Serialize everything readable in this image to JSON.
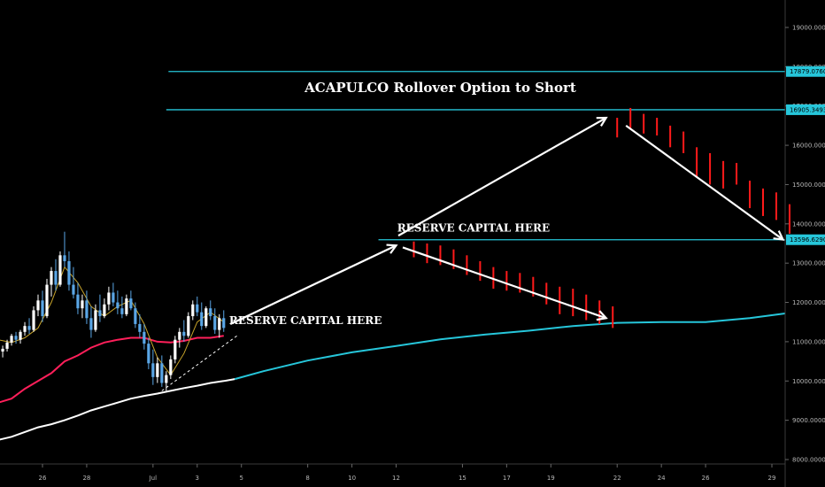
{
  "chart_data": {
    "type": "line",
    "title": "",
    "ylim": [
      7900,
      19800
    ],
    "y_ticks": [
      8000,
      9000,
      10000,
      11000,
      12000,
      13000,
      14000,
      15000,
      16000,
      17000,
      18000,
      19000
    ],
    "y_tick_labels": [
      "8000.0000",
      "9000.0000",
      "10000.0000",
      "11000.0000",
      "12000.0000",
      "13000.0000",
      "14000.0000",
      "15000.0000",
      "16000.0000",
      "17000.0000",
      "18000.0000",
      "19000.0000"
    ],
    "x_ticks": [
      {
        "label": "26",
        "day": 26
      },
      {
        "label": "28",
        "day": 28
      },
      {
        "label": "Jul",
        "day": 31
      },
      {
        "label": "3",
        "day": 33
      },
      {
        "label": "5",
        "day": 35
      },
      {
        "label": "8",
        "day": 38
      },
      {
        "label": "10",
        "day": 40
      },
      {
        "label": "12",
        "day": 42
      },
      {
        "label": "15",
        "day": 45
      },
      {
        "label": "17",
        "day": 47
      },
      {
        "label": "19",
        "day": 49
      },
      {
        "label": "22",
        "day": 52
      },
      {
        "label": "24",
        "day": 54
      },
      {
        "label": "26",
        "day": 56
      },
      {
        "label": "29",
        "day": 59
      }
    ],
    "xlim": [
      24.0,
      59.6
    ],
    "horizontal_levels": [
      {
        "name": "level-17879",
        "value": 17879.076,
        "label": "17879.0760",
        "color": "#26c6da",
        "x_start": 31.7
      },
      {
        "name": "level-16905",
        "value": 16905.3493,
        "label": "16905.3493",
        "color": "#26c6da",
        "x_start": 31.6
      },
      {
        "name": "level-13596",
        "value": 13596.629,
        "label": "13596.6290",
        "color": "#26c6da",
        "x_start": 41.2
      }
    ],
    "candles": [
      [
        24.0,
        10850,
        10950,
        10650,
        10750
      ],
      [
        24.2,
        10750,
        10900,
        10600,
        10820
      ],
      [
        24.4,
        10820,
        11050,
        10750,
        10980
      ],
      [
        24.6,
        10980,
        11200,
        10900,
        11150
      ],
      [
        24.8,
        11150,
        11250,
        10950,
        11050
      ],
      [
        25.0,
        11050,
        11300,
        10950,
        11250
      ],
      [
        25.2,
        11250,
        11500,
        11150,
        11400
      ],
      [
        25.4,
        11400,
        11600,
        11200,
        11300
      ],
      [
        25.6,
        11300,
        11900,
        11250,
        11800
      ],
      [
        25.8,
        11800,
        12200,
        11650,
        12050
      ],
      [
        26.0,
        12050,
        12300,
        11500,
        11650
      ],
      [
        26.2,
        11650,
        12600,
        11600,
        12450
      ],
      [
        26.4,
        12450,
        12900,
        12150,
        12800
      ],
      [
        26.6,
        12800,
        13100,
        12300,
        12450
      ],
      [
        26.8,
        12450,
        13300,
        12400,
        13200
      ],
      [
        27.0,
        13200,
        13800,
        12900,
        13050
      ],
      [
        27.2,
        13050,
        13300,
        12300,
        12450
      ],
      [
        27.4,
        12450,
        12900,
        12100,
        12200
      ],
      [
        27.6,
        12200,
        12500,
        11700,
        11850
      ],
      [
        27.8,
        11850,
        12200,
        11600,
        12050
      ],
      [
        28.0,
        12050,
        12300,
        11450,
        11600
      ],
      [
        28.2,
        11600,
        11900,
        11100,
        11300
      ],
      [
        28.4,
        11300,
        11950,
        11250,
        11800
      ],
      [
        28.6,
        11800,
        12200,
        11500,
        11650
      ],
      [
        28.8,
        11650,
        12100,
        11600,
        11950
      ],
      [
        29.0,
        11950,
        12400,
        11800,
        12250
      ],
      [
        29.2,
        12250,
        12500,
        11900,
        12000
      ],
      [
        29.4,
        12000,
        12300,
        11700,
        11850
      ],
      [
        29.6,
        11850,
        12150,
        11600,
        11700
      ],
      [
        29.8,
        11700,
        12200,
        11650,
        12100
      ],
      [
        30.0,
        12100,
        12300,
        11800,
        11850
      ],
      [
        30.2,
        11850,
        12000,
        11350,
        11450
      ],
      [
        30.4,
        11450,
        11700,
        11100,
        11250
      ],
      [
        30.6,
        11250,
        11450,
        10800,
        10950
      ],
      [
        30.8,
        10950,
        11100,
        10300,
        10450
      ],
      [
        31.0,
        10450,
        10800,
        9900,
        10100
      ],
      [
        31.2,
        10100,
        10600,
        9950,
        10450
      ],
      [
        31.4,
        10450,
        10650,
        9850,
        9950
      ],
      [
        31.6,
        9950,
        10250,
        9750,
        10150
      ],
      [
        31.8,
        10150,
        10650,
        10050,
        10550
      ],
      [
        32.0,
        10550,
        11150,
        10450,
        11050
      ],
      [
        32.2,
        11050,
        11350,
        10850,
        11250
      ],
      [
        32.4,
        11250,
        11550,
        11000,
        11150
      ],
      [
        32.6,
        11150,
        11750,
        11100,
        11650
      ],
      [
        32.8,
        11650,
        12050,
        11550,
        11950
      ],
      [
        33.0,
        11950,
        12150,
        11650,
        11750
      ],
      [
        33.2,
        11750,
        12000,
        11300,
        11400
      ],
      [
        33.4,
        11400,
        11900,
        11350,
        11850
      ],
      [
        33.6,
        11850,
        12050,
        11550,
        11650
      ],
      [
        33.8,
        11650,
        11850,
        11200,
        11300
      ],
      [
        34.0,
        11300,
        11700,
        11100,
        11600
      ],
      [
        34.2,
        11600,
        11800,
        11250,
        11350
      ]
    ],
    "series": [
      {
        "name": "",
        "color": "#ff1f5a",
        "points": [
          [
            24.0,
            9450
          ],
          [
            24.6,
            9550
          ],
          [
            25.2,
            9800
          ],
          [
            25.8,
            10000
          ],
          [
            26.4,
            10200
          ],
          [
            27.0,
            10500
          ],
          [
            27.6,
            10650
          ],
          [
            28.2,
            10850
          ],
          [
            28.8,
            10980
          ],
          [
            29.4,
            11050
          ],
          [
            30.0,
            11100
          ],
          [
            30.6,
            11100
          ],
          [
            31.2,
            11000
          ],
          [
            31.8,
            10980
          ],
          [
            32.4,
            11020
          ],
          [
            33.0,
            11100
          ],
          [
            33.6,
            11100
          ],
          [
            34.2,
            11150
          ]
        ]
      },
      {
        "name": "",
        "color": "#ffffff",
        "points": [
          [
            24.0,
            8500
          ],
          [
            24.6,
            8580
          ],
          [
            25.2,
            8700
          ],
          [
            25.8,
            8820
          ],
          [
            26.4,
            8900
          ],
          [
            27.0,
            9000
          ],
          [
            27.6,
            9120
          ],
          [
            28.2,
            9250
          ],
          [
            28.8,
            9350
          ],
          [
            29.4,
            9450
          ],
          [
            30.0,
            9550
          ],
          [
            30.6,
            9620
          ],
          [
            31.2,
            9680
          ],
          [
            31.8,
            9750
          ],
          [
            32.4,
            9820
          ],
          [
            33.0,
            9880
          ],
          [
            33.6,
            9950
          ],
          [
            34.2,
            10000
          ],
          [
            34.7,
            10050
          ]
        ]
      },
      {
        "name": "",
        "color": "#26c6da",
        "points": [
          [
            34.7,
            10050
          ],
          [
            36.0,
            10250
          ],
          [
            38.0,
            10520
          ],
          [
            40.0,
            10730
          ],
          [
            42.0,
            10890
          ],
          [
            44.0,
            11060
          ],
          [
            46.0,
            11180
          ],
          [
            48.0,
            11280
          ],
          [
            50.0,
            11400
          ],
          [
            52.0,
            11480
          ],
          [
            54.0,
            11500
          ],
          [
            56.0,
            11500
          ],
          [
            58.0,
            11600
          ],
          [
            59.6,
            11720
          ]
        ]
      },
      {
        "name": "",
        "color": "#c8a42a",
        "points": [
          [
            24.0,
            11050
          ],
          [
            24.6,
            10980
          ],
          [
            25.2,
            11100
          ],
          [
            25.8,
            11350
          ],
          [
            26.4,
            12000
          ],
          [
            27.0,
            12900
          ],
          [
            27.6,
            12500
          ],
          [
            28.2,
            11900
          ],
          [
            28.8,
            11650
          ],
          [
            29.4,
            11900
          ],
          [
            30.0,
            12050
          ],
          [
            30.6,
            11450
          ],
          [
            31.2,
            10600
          ],
          [
            31.8,
            10150
          ],
          [
            32.4,
            10700
          ],
          [
            33.0,
            11500
          ],
          [
            33.6,
            11750
          ],
          [
            34.2,
            11500
          ]
        ]
      }
    ],
    "projection_bars": [
      [
        42.8,
        13550,
        13150
      ],
      [
        43.4,
        13500,
        13000
      ],
      [
        44.0,
        13450,
        12950
      ],
      [
        44.6,
        13350,
        12850
      ],
      [
        45.2,
        13200,
        12700
      ],
      [
        45.8,
        13050,
        12550
      ],
      [
        46.4,
        12900,
        12350
      ],
      [
        47.0,
        12800,
        12300
      ],
      [
        47.6,
        12750,
        12250
      ],
      [
        48.2,
        12650,
        12150
      ],
      [
        48.8,
        12500,
        11950
      ],
      [
        49.4,
        12400,
        11700
      ],
      [
        50.0,
        12350,
        11650
      ],
      [
        50.6,
        12200,
        11550
      ],
      [
        51.2,
        12050,
        11450
      ],
      [
        51.8,
        11900,
        11350
      ],
      [
        52.0,
        16700,
        16200
      ],
      [
        52.6,
        16950,
        16400
      ],
      [
        53.2,
        16800,
        16300
      ],
      [
        53.8,
        16700,
        16250
      ],
      [
        54.4,
        16500,
        15950
      ],
      [
        55.0,
        16350,
        15800
      ],
      [
        55.6,
        15950,
        15200
      ],
      [
        56.2,
        15800,
        15000
      ],
      [
        56.8,
        15600,
        14900
      ],
      [
        57.4,
        15550,
        15000
      ],
      [
        58.0,
        15100,
        14400
      ],
      [
        58.6,
        14900,
        14200
      ],
      [
        59.2,
        14800,
        14100
      ],
      [
        59.8,
        14500,
        13750
      ]
    ],
    "arrows": [
      {
        "from": [
          34.5,
          11450
        ],
        "to": [
          42.0,
          13450
        ]
      },
      {
        "from": [
          42.1,
          13700
        ],
        "to": [
          51.5,
          16700
        ]
      },
      {
        "from": [
          42.3,
          13400
        ],
        "to": [
          51.5,
          11600
        ]
      },
      {
        "from": [
          52.4,
          16500
        ],
        "to": [
          59.5,
          13600
        ]
      }
    ],
    "dashed_trendline": {
      "from": [
        31.4,
        9750
      ],
      "to": [
        34.8,
        11150
      ]
    },
    "annotations": [
      {
        "name": "annotation-rollover",
        "text": "ACAPULCO Rollover Option to Short",
        "day": 44.0,
        "value": 17350,
        "size": 15
      },
      {
        "name": "annotation-reserve-upper",
        "text": "RESERVE CAPITAL HERE",
        "day": 45.5,
        "value": 13800,
        "size": 12
      },
      {
        "name": "annotation-reserve-lower",
        "text": "RESERVE CAPITAL HERE",
        "day": 37.9,
        "value": 11450,
        "size": 12
      }
    ]
  }
}
